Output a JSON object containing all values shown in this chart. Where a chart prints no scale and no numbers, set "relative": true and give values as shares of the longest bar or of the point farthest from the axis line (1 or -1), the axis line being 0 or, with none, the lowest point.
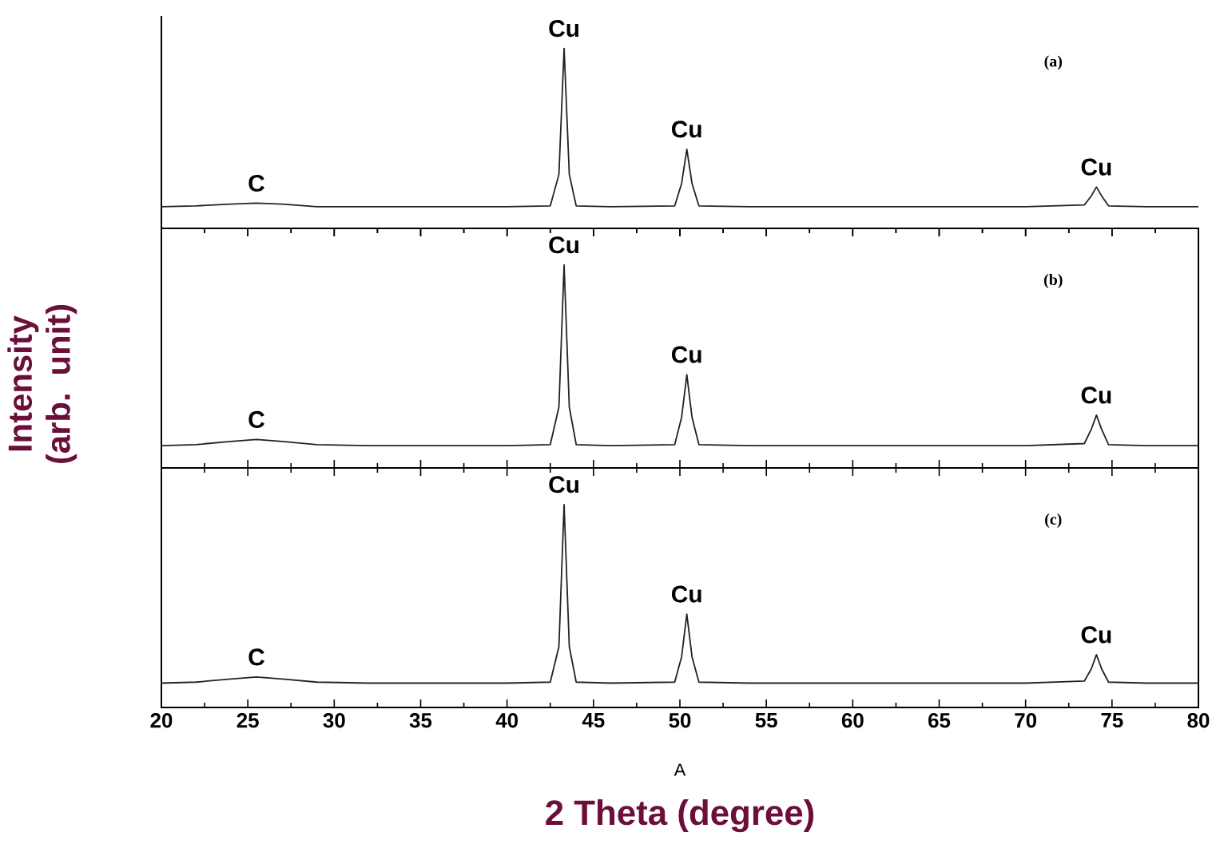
{
  "chart_data": [
    {
      "type": "line",
      "relative": true,
      "color": "#222222",
      "xlim": [
        20,
        80
      ],
      "xticks": [
        20,
        25,
        30,
        35,
        40,
        45,
        50,
        55,
        60,
        65,
        70,
        75,
        80
      ],
      "tick_labels": false,
      "x": [
        20,
        22,
        24,
        25.5,
        27,
        29,
        32,
        36,
        40,
        42.5,
        43,
        43.3,
        43.6,
        44,
        46,
        49.7,
        50.1,
        50.4,
        50.7,
        51.1,
        54,
        58,
        62,
        66,
        70,
        73.4,
        73.8,
        74.1,
        74.4,
        74.8,
        77,
        80
      ],
      "values": [
        0.12,
        0.125,
        0.135,
        0.14,
        0.135,
        0.12,
        0.12,
        0.12,
        0.12,
        0.125,
        0.3,
        1,
        0.3,
        0.125,
        0.12,
        0.125,
        0.25,
        0.44,
        0.25,
        0.125,
        0.12,
        0.12,
        0.12,
        0.12,
        0.12,
        0.13,
        0.18,
        0.23,
        0.18,
        0.125,
        0.12,
        0.12
      ],
      "annotations": [
        "(a)",
        {
          "text": "C",
          "x": 25.5,
          "y": 0.14
        },
        {
          "text": "Cu",
          "x": 43.3,
          "y": 1
        },
        {
          "text": "Cu",
          "x": 50.4,
          "y": 0.44
        },
        {
          "text": "Cu",
          "x": 74.1,
          "y": 0.23
        }
      ]
    },
    {
      "type": "line",
      "relative": true,
      "color": "#222222",
      "xlim": [
        20,
        80
      ],
      "xticks": [
        20,
        25,
        30,
        35,
        40,
        45,
        50,
        55,
        60,
        65,
        70,
        75,
        80
      ],
      "tick_labels": false,
      "ylabel": "Intensity (arb. unit)",
      "x": [
        20,
        22,
        24,
        25.5,
        27,
        29,
        32,
        36,
        40,
        42.5,
        43,
        43.3,
        43.6,
        44,
        46,
        49.7,
        50.1,
        50.4,
        50.7,
        51.1,
        54,
        58,
        62,
        66,
        70,
        73.4,
        73.8,
        74.1,
        74.4,
        74.8,
        77,
        80
      ],
      "values": [
        0.11,
        0.115,
        0.13,
        0.14,
        0.13,
        0.115,
        0.11,
        0.11,
        0.11,
        0.115,
        0.3,
        1,
        0.3,
        0.115,
        0.11,
        0.115,
        0.25,
        0.46,
        0.25,
        0.115,
        0.11,
        0.11,
        0.11,
        0.11,
        0.11,
        0.12,
        0.19,
        0.26,
        0.19,
        0.115,
        0.11,
        0.11
      ],
      "annotations": [
        "(b)",
        {
          "text": "C",
          "x": 25.5,
          "y": 0.14
        },
        {
          "text": "Cu",
          "x": 43.3,
          "y": 1
        },
        {
          "text": "Cu",
          "x": 50.4,
          "y": 0.46
        },
        {
          "text": "Cu",
          "x": 74.1,
          "y": 0.26
        }
      ]
    },
    {
      "type": "line",
      "relative": true,
      "color": "#222222",
      "xlim": [
        20,
        80
      ],
      "xticks": [
        20,
        25,
        30,
        35,
        40,
        45,
        50,
        55,
        60,
        65,
        70,
        75,
        80
      ],
      "tick_labels": "x",
      "xlabel": "2 Theta (degree)",
      "x": [
        20,
        22,
        24,
        25.5,
        27,
        29,
        32,
        36,
        40,
        42.5,
        43,
        43.3,
        43.6,
        44,
        46,
        49.7,
        50.1,
        50.4,
        50.7,
        51.1,
        54,
        58,
        62,
        66,
        70,
        73.4,
        73.8,
        74.1,
        74.4,
        74.8,
        77,
        80
      ],
      "values": [
        0.12,
        0.125,
        0.14,
        0.15,
        0.14,
        0.125,
        0.12,
        0.12,
        0.12,
        0.125,
        0.3,
        1,
        0.3,
        0.125,
        0.12,
        0.125,
        0.25,
        0.46,
        0.25,
        0.125,
        0.12,
        0.12,
        0.12,
        0.12,
        0.12,
        0.13,
        0.19,
        0.26,
        0.19,
        0.125,
        0.12,
        0.12
      ],
      "annotations": [
        "(c)",
        "A",
        {
          "text": "C",
          "x": 25.5,
          "y": 0.15
        },
        {
          "text": "Cu",
          "x": 43.3,
          "y": 1
        },
        {
          "text": "Cu",
          "x": 50.4,
          "y": 0.46
        },
        {
          "text": "Cu",
          "x": 74.1,
          "y": 0.26
        }
      ]
    }
  ]
}
